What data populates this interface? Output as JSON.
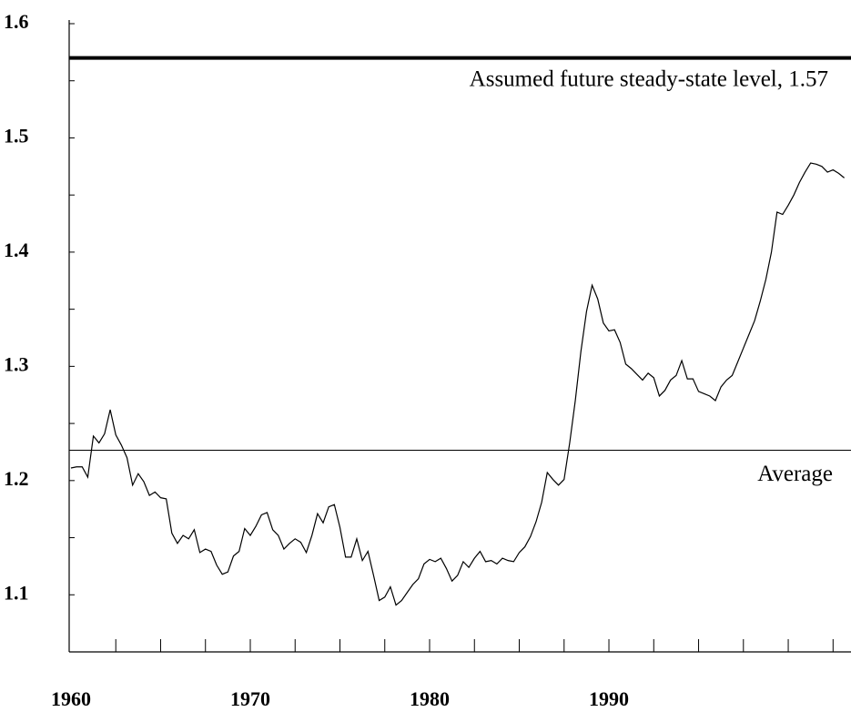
{
  "chart_data": {
    "type": "line",
    "x": [
      1960,
      1960.3125,
      1960.625,
      1960.9375,
      1961.25,
      1961.5625,
      1961.875,
      1962.1875,
      1962.5,
      1962.8125,
      1963.125,
      1963.4375,
      1963.75,
      1964.0625,
      1964.375,
      1964.6875,
      1965,
      1965.3125,
      1965.625,
      1965.9375,
      1966.25,
      1966.5625,
      1966.875,
      1967.1875,
      1967.5,
      1967.8125,
      1968.125,
      1968.4375,
      1968.75,
      1969.0625,
      1969.375,
      1969.6875,
      1970,
      1970.3125,
      1970.625,
      1970.9375,
      1971.25,
      1971.5625,
      1971.875,
      1972.1875,
      1972.5,
      1972.8125,
      1973.125,
      1973.4375,
      1973.75,
      1974.0625,
      1974.375,
      1974.6875,
      1975,
      1975.3125,
      1975.625,
      1975.9375,
      1976.25,
      1976.5625,
      1976.875,
      1977.1875,
      1977.5,
      1977.8125,
      1978.125,
      1978.4375,
      1978.75,
      1979.0625,
      1979.375,
      1979.6875,
      1980,
      1980.3125,
      1980.625,
      1980.9375,
      1981.25,
      1981.5625,
      1981.875,
      1982.1875,
      1982.5,
      1982.8125,
      1983.125,
      1983.4375,
      1983.75,
      1984.0625,
      1984.375,
      1984.6875,
      1985,
      1985.3125,
      1985.625,
      1985.9375,
      1986.25,
      1986.5625,
      1986.875,
      1987.1875,
      1987.5,
      1987.8125,
      1988.125,
      1988.4375,
      1988.75,
      1989.0625,
      1989.375,
      1989.6875,
      1990,
      1990.3125,
      1990.625,
      1990.9375,
      1991.25,
      1991.5625,
      1991.875,
      1992.1875,
      1992.5,
      1992.8125,
      1993.125,
      1993.4375,
      1993.75,
      1994.0625,
      1994.375,
      1994.6875,
      1995,
      1995.3125,
      1995.625,
      1995.9375,
      1996.25,
      1996.5625,
      1996.875,
      1997.1875,
      1997.5,
      1997.8125,
      1998.125,
      1998.4375,
      1998.75,
      1999.0625,
      1999.375,
      1999.6875,
      2000,
      2000.3125,
      2000.625,
      2000.9375,
      2001.25,
      2001.5625,
      2001.875,
      2002.1875,
      2002.5,
      2002.8125,
      2003.125
    ],
    "series": [
      {
        "color": "#000000",
        "values": [
          1.211,
          1.212,
          1.212,
          1.203,
          1.239,
          1.233,
          1.241,
          1.262,
          1.24,
          1.231,
          1.22,
          1.196,
          1.206,
          1.199,
          1.187,
          1.19,
          1.185,
          1.184,
          1.154,
          1.145,
          1.152,
          1.149,
          1.157,
          1.137,
          1.14,
          1.138,
          1.126,
          1.118,
          1.12,
          1.134,
          1.138,
          1.158,
          1.152,
          1.16,
          1.17,
          1.172,
          1.157,
          1.152,
          1.14,
          1.145,
          1.149,
          1.146,
          1.137,
          1.152,
          1.171,
          1.163,
          1.177,
          1.179,
          1.159,
          1.133,
          1.133,
          1.149,
          1.13,
          1.138,
          1.117,
          1.095,
          1.098,
          1.107,
          1.091,
          1.095,
          1.102,
          1.109,
          1.114,
          1.127,
          1.131,
          1.129,
          1.132,
          1.123,
          1.112,
          1.117,
          1.129,
          1.124,
          1.132,
          1.138,
          1.129,
          1.13,
          1.127,
          1.132,
          1.13,
          1.129,
          1.137,
          1.142,
          1.151,
          1.164,
          1.181,
          1.207,
          1.201,
          1.196,
          1.201,
          1.233,
          1.27,
          1.313,
          1.348,
          1.371,
          1.359,
          1.338,
          1.331,
          1.332,
          1.321,
          1.302,
          1.298,
          1.293,
          1.288,
          1.294,
          1.29,
          1.274,
          1.279,
          1.288,
          1.292,
          1.305,
          1.289,
          1.289,
          1.278,
          1.276,
          1.274,
          1.27,
          1.282,
          1.288,
          1.292,
          1.304,
          1.316,
          1.328,
          1.34,
          1.357,
          1.376,
          1.4,
          1.435,
          1.433,
          1.441,
          1.45,
          1.461,
          1.47,
          1.478,
          1.477,
          1.475,
          1.47,
          1.472,
          1.469,
          1.465
        ]
      }
    ],
    "xlim": [
      1959.9,
      2003.5
    ],
    "xticks": [
      1960,
      1970,
      1980,
      1990
    ],
    "minor_xticks": [
      1962.5,
      1965,
      1967.5,
      1970,
      1972.5,
      1975,
      1977.5,
      1980,
      1982.5,
      1985,
      1987.5,
      1990,
      1992.5,
      1995,
      1997.5,
      2000,
      2002.5
    ],
    "ylim": [
      1.05,
      1.6
    ],
    "yticks": [
      1.1,
      1.2,
      1.3,
      1.4,
      1.5,
      1.6
    ],
    "minor_yticks": [
      1.15,
      1.25,
      1.35,
      1.45,
      1.55
    ],
    "hlines": [
      {
        "value": 1.57,
        "label": "Assumed future steady-state level, 1.57",
        "thick": true
      },
      {
        "value": 1.2266,
        "label": "Average",
        "thick": false
      }
    ]
  }
}
